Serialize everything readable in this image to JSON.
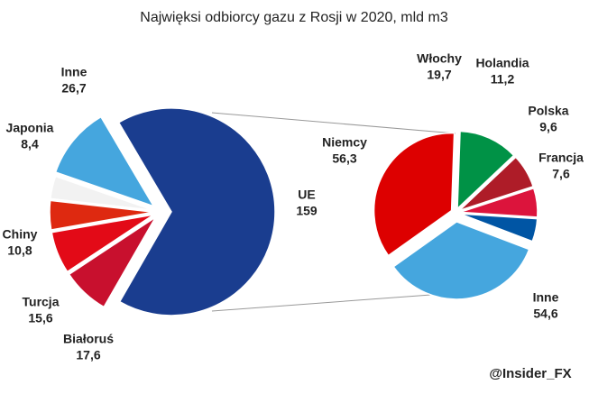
{
  "chart_data": [
    {
      "type": "pie",
      "title": "Najwięksi odbiorcy gazu z Rosji w 2020, mld m3",
      "credit": "@Insider_FX",
      "categories": [
        "UE",
        "Białoruś",
        "Turcja",
        "Chiny",
        "Japonia",
        "Inne"
      ],
      "values": [
        159,
        17.6,
        15.6,
        10.8,
        8.4,
        26.7
      ],
      "value_labels": [
        "159",
        "17,6",
        "15,6",
        "10,8",
        "8,4",
        "26,7"
      ],
      "colors": [
        "#1a3d8f",
        "#c8102e",
        "#e30a17",
        "#de2910",
        "#f2f2f2",
        "#45a6de"
      ]
    },
    {
      "type": "pie",
      "categories": [
        "Włochy",
        "Holandia",
        "Polska",
        "Francja",
        "Inne",
        "Niemcy"
      ],
      "values": [
        19.7,
        11.2,
        9.6,
        7.6,
        54.6,
        56.3
      ],
      "value_labels": [
        "19,7",
        "11,2",
        "9,6",
        "7,6",
        "54,6",
        "56,3"
      ],
      "colors": [
        "#009246",
        "#ae1c28",
        "#dc143c",
        "#0055a4",
        "#45a6de",
        "#dd0000"
      ]
    }
  ]
}
